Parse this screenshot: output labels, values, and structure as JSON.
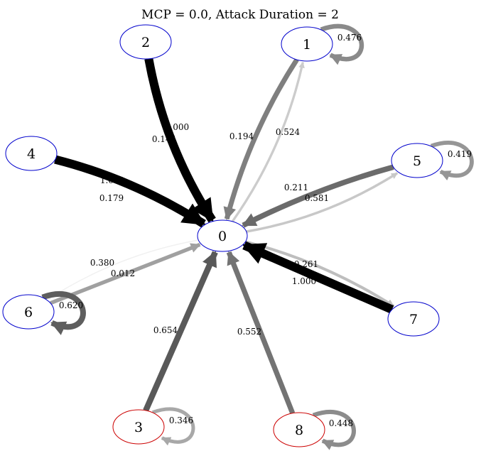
{
  "title": "MCP = 0.0, Attack Duration = 2",
  "nodes": [
    {
      "id": "0",
      "label": "0",
      "stroke": "#0000cc"
    },
    {
      "id": "1",
      "label": "1",
      "stroke": "#0000cc"
    },
    {
      "id": "2",
      "label": "2",
      "stroke": "#0000cc"
    },
    {
      "id": "3",
      "label": "3",
      "stroke": "#cc0000"
    },
    {
      "id": "4",
      "label": "4",
      "stroke": "#0000cc"
    },
    {
      "id": "5",
      "label": "5",
      "stroke": "#0000cc"
    },
    {
      "id": "6",
      "label": "6",
      "stroke": "#0000cc"
    },
    {
      "id": "7",
      "label": "7",
      "stroke": "#0000cc"
    },
    {
      "id": "8",
      "label": "8",
      "stroke": "#cc0000"
    }
  ],
  "edges": [
    {
      "from": "0",
      "to": "1",
      "weight": "0.194",
      "color": "#cccccc"
    },
    {
      "from": "0",
      "to": "2",
      "weight": "0.144",
      "color": "#d3d3d3"
    },
    {
      "from": "0",
      "to": "4",
      "weight": "0.179",
      "color": "#cccccc"
    },
    {
      "from": "0",
      "to": "5",
      "weight": "0.211",
      "color": "#c8c8c8"
    },
    {
      "from": "0",
      "to": "6",
      "weight": "0.012",
      "color": "#f0f0f0"
    },
    {
      "from": "0",
      "to": "7",
      "weight": "0.261",
      "color": "#bebebe"
    },
    {
      "from": "1",
      "to": "0",
      "weight": "0.524",
      "color": "#7f7f7f"
    },
    {
      "from": "2",
      "to": "0",
      "weight": "1.000",
      "color": "#000000"
    },
    {
      "from": "3",
      "to": "0",
      "weight": "0.654",
      "color": "#595959"
    },
    {
      "from": "4",
      "to": "0",
      "weight": "1.000",
      "color": "#000000"
    },
    {
      "from": "5",
      "to": "0",
      "weight": "0.581",
      "color": "#6b6b6b"
    },
    {
      "from": "6",
      "to": "0",
      "weight": "0.380",
      "color": "#a0a0a0"
    },
    {
      "from": "7",
      "to": "0",
      "weight": "1.000",
      "color": "#000000"
    },
    {
      "from": "8",
      "to": "0",
      "weight": "0.552",
      "color": "#737373"
    },
    {
      "from": "1",
      "to": "1",
      "weight": "0.476",
      "color": "#8a8a8a"
    },
    {
      "from": "3",
      "to": "3",
      "weight": "0.346",
      "color": "#a8a8a8"
    },
    {
      "from": "5",
      "to": "5",
      "weight": "0.419",
      "color": "#969696"
    },
    {
      "from": "6",
      "to": "6",
      "weight": "0.620",
      "color": "#5e5e5e"
    },
    {
      "from": "8",
      "to": "8",
      "weight": "0.448",
      "color": "#8c8c8c"
    }
  ]
}
